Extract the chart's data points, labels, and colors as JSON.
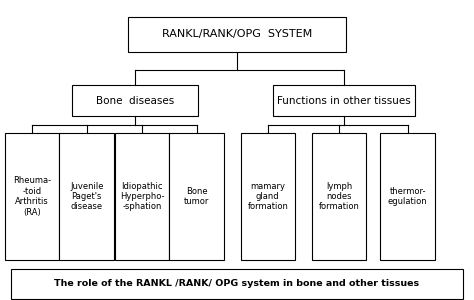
{
  "title": "RANKL/RANK/OPG  SYSTEM",
  "subtitle": "The role of the RANKL /RANK/ OPG system in bone and other tissues",
  "mid_left": "Bone  diseases",
  "mid_right": "Functions in other tissues",
  "leaf_texts_left": [
    "Rheuma-\n-toid\nArthritis\n(RA)",
    "Juvenile\nPaget's\ndisease",
    "Idiopathic\nHyperpho-\n-sphation",
    "Bone\ntumor"
  ],
  "leaf_texts_right": [
    "mamary\ngland\nformation",
    "lymph\nnodes\nformation",
    "thermor-\negulation"
  ],
  "bg_color": "#ffffff",
  "box_edge_color": "#000000",
  "text_color": "#000000",
  "line_color": "#000000",
  "fig_width": 4.74,
  "fig_height": 3.0,
  "dpi": 100
}
